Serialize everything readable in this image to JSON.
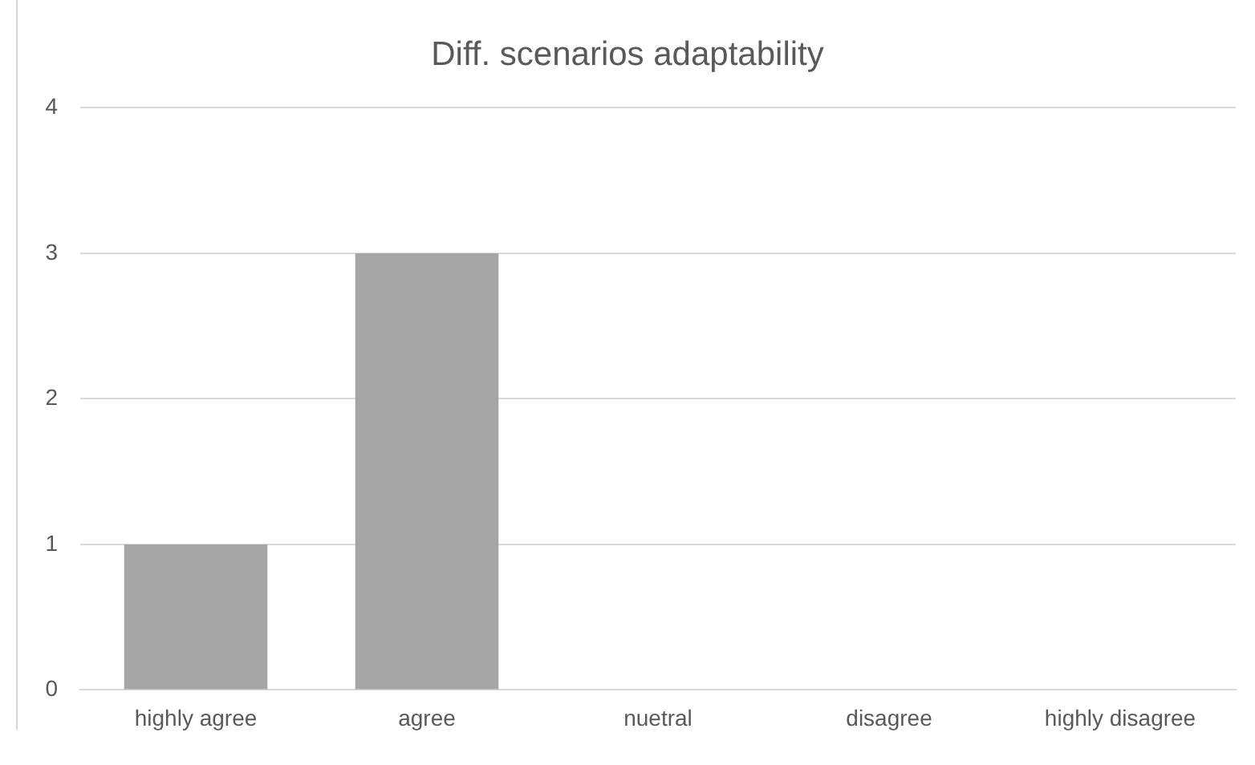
{
  "chart_data": {
    "type": "bar",
    "title": "Diff. scenarios adaptability",
    "categories": [
      "highly agree",
      "agree",
      "nuetral",
      "disagree",
      "highly disagree"
    ],
    "values": [
      1,
      3,
      0,
      0,
      0
    ],
    "color": "#a5a5a5",
    "ylim": [
      0,
      4
    ],
    "yticks": [
      0,
      1,
      2,
      3,
      4
    ],
    "grid": "y",
    "legend": false
  }
}
